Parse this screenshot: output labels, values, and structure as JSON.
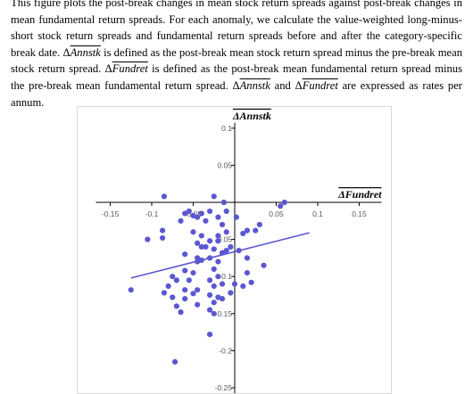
{
  "caption": {
    "seg1": "This figure plots the post-break changes in mean stock return spreads against post-break changes in mean fundamental return spreads. For each anomaly, we calculate the value-weighted long-minus-short stock return spreads and fundamental return spreads before and after the category-specific break date. ",
    "sym_stk": "Δ",
    "var_stk": "Annstk",
    "seg2": " is defined as the post-break mean stock return spread minus the pre-break mean stock return spread. ",
    "sym_fund": "Δ",
    "var_fund": "Fundret",
    "seg3": " is defined as the post-break mean fundamental return spread minus the pre-break mean fundamental return spread. ",
    "seg4": " and ",
    "seg5": " are expressed as rates per annum."
  },
  "chart_data": {
    "type": "scatter",
    "xlabel": "ΔFundret",
    "ylabel": "ΔAnnstk",
    "xlim": [
      -0.15,
      0.15
    ],
    "ylim": [
      -0.25,
      0.1
    ],
    "x_ticks": [
      "-0.15",
      "-0.1",
      "-0.05",
      "0",
      "0.05",
      "0.1",
      "0.15"
    ],
    "y_ticks": [
      "0.1",
      "0.05",
      "-0.05",
      "-0.1",
      "-0.15",
      "-0.2",
      "-0.25"
    ],
    "grid": false,
    "trendline": {
      "x": [
        -0.125,
        0.09
      ],
      "y": [
        -0.102,
        -0.041
      ]
    },
    "marker_color": "#5b57d1",
    "points": [
      [
        -0.085,
        0.008
      ],
      [
        -0.025,
        0.008
      ],
      [
        -0.013,
        0.0
      ],
      [
        0.06,
        0.0
      ],
      [
        0.055,
        -0.005
      ],
      [
        -0.06,
        -0.015
      ],
      [
        -0.055,
        -0.012
      ],
      [
        -0.05,
        -0.018
      ],
      [
        -0.045,
        -0.02
      ],
      [
        -0.04,
        -0.015
      ],
      [
        -0.03,
        -0.012
      ],
      [
        -0.02,
        -0.02
      ],
      [
        -0.01,
        -0.012
      ],
      [
        0.002,
        -0.02
      ],
      [
        -0.065,
        -0.025
      ],
      [
        -0.035,
        -0.025
      ],
      [
        -0.015,
        -0.03
      ],
      [
        0.03,
        -0.03
      ],
      [
        0.025,
        -0.038
      ],
      [
        0.015,
        -0.038
      ],
      [
        -0.087,
        -0.038
      ],
      [
        -0.05,
        -0.04
      ],
      [
        -0.04,
        -0.045
      ],
      [
        -0.02,
        -0.045
      ],
      [
        -0.01,
        -0.04
      ],
      [
        0.01,
        -0.042
      ],
      [
        -0.105,
        -0.05
      ],
      [
        -0.087,
        -0.048
      ],
      [
        -0.045,
        -0.055
      ],
      [
        -0.04,
        -0.06
      ],
      [
        -0.03,
        -0.052
      ],
      [
        -0.02,
        -0.052
      ],
      [
        -0.035,
        -0.06
      ],
      [
        -0.025,
        -0.063
      ],
      [
        -0.005,
        -0.06
      ],
      [
        -0.01,
        -0.065
      ],
      [
        0.005,
        -0.065
      ],
      [
        -0.06,
        -0.07
      ],
      [
        -0.045,
        -0.075
      ],
      [
        -0.04,
        -0.078
      ],
      [
        -0.03,
        -0.075
      ],
      [
        -0.015,
        -0.068
      ],
      [
        -0.045,
        -0.08
      ],
      [
        -0.02,
        -0.08
      ],
      [
        0.015,
        -0.075
      ],
      [
        0.035,
        -0.085
      ],
      [
        -0.025,
        -0.09
      ],
      [
        -0.05,
        -0.095
      ],
      [
        -0.06,
        -0.092
      ],
      [
        -0.075,
        -0.1
      ],
      [
        -0.07,
        -0.105
      ],
      [
        -0.055,
        -0.105
      ],
      [
        -0.02,
        -0.1
      ],
      [
        0.015,
        -0.095
      ],
      [
        -0.03,
        -0.105
      ],
      [
        -0.125,
        -0.118
      ],
      [
        -0.08,
        -0.113
      ],
      [
        -0.06,
        -0.118
      ],
      [
        -0.045,
        -0.118
      ],
      [
        -0.025,
        -0.113
      ],
      [
        -0.015,
        -0.11
      ],
      [
        0.0,
        -0.11
      ],
      [
        0.01,
        -0.113
      ],
      [
        0.02,
        -0.108
      ],
      [
        -0.085,
        -0.122
      ],
      [
        -0.05,
        -0.123
      ],
      [
        -0.03,
        -0.125
      ],
      [
        -0.005,
        -0.122
      ],
      [
        -0.075,
        -0.128
      ],
      [
        -0.06,
        -0.13
      ],
      [
        -0.02,
        -0.128
      ],
      [
        -0.015,
        -0.13
      ],
      [
        -0.025,
        -0.135
      ],
      [
        -0.07,
        -0.14
      ],
      [
        -0.045,
        -0.138
      ],
      [
        -0.065,
        -0.148
      ],
      [
        -0.03,
        -0.145
      ],
      [
        -0.025,
        -0.15
      ],
      [
        -0.03,
        -0.178
      ],
      [
        -0.072,
        -0.215
      ]
    ]
  }
}
